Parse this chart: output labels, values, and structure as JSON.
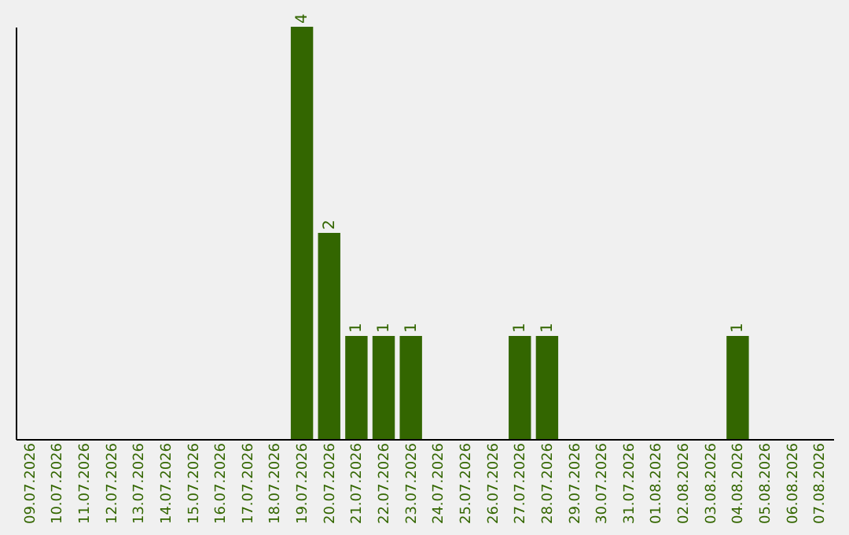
{
  "chart_data": {
    "type": "bar",
    "categories": [
      "09.07.2026",
      "10.07.2026",
      "11.07.2026",
      "12.07.2026",
      "13.07.2026",
      "14.07.2026",
      "15.07.2026",
      "16.07.2026",
      "17.07.2026",
      "18.07.2026",
      "19.07.2026",
      "20.07.2026",
      "21.07.2026",
      "22.07.2026",
      "23.07.2026",
      "24.07.2026",
      "25.07.2026",
      "26.07.2026",
      "27.07.2026",
      "28.07.2026",
      "29.07.2026",
      "30.07.2026",
      "31.07.2026",
      "01.08.2026",
      "02.08.2026",
      "03.08.2026",
      "04.08.2026",
      "05.08.2026",
      "06.08.2026",
      "07.08.2026"
    ],
    "values": [
      0,
      0,
      0,
      0,
      0,
      0,
      0,
      0,
      0,
      0,
      4,
      2,
      1,
      1,
      1,
      0,
      0,
      0,
      1,
      1,
      0,
      0,
      0,
      0,
      0,
      0,
      1,
      0,
      0,
      0
    ],
    "value_labels": [
      null,
      null,
      null,
      null,
      null,
      null,
      null,
      null,
      null,
      null,
      "4",
      "2",
      "1",
      "1",
      "1",
      null,
      null,
      null,
      "1",
      "1",
      null,
      null,
      null,
      null,
      null,
      null,
      "1",
      null,
      null,
      null
    ],
    "color": "#336600",
    "tick_labels": "x"
  }
}
